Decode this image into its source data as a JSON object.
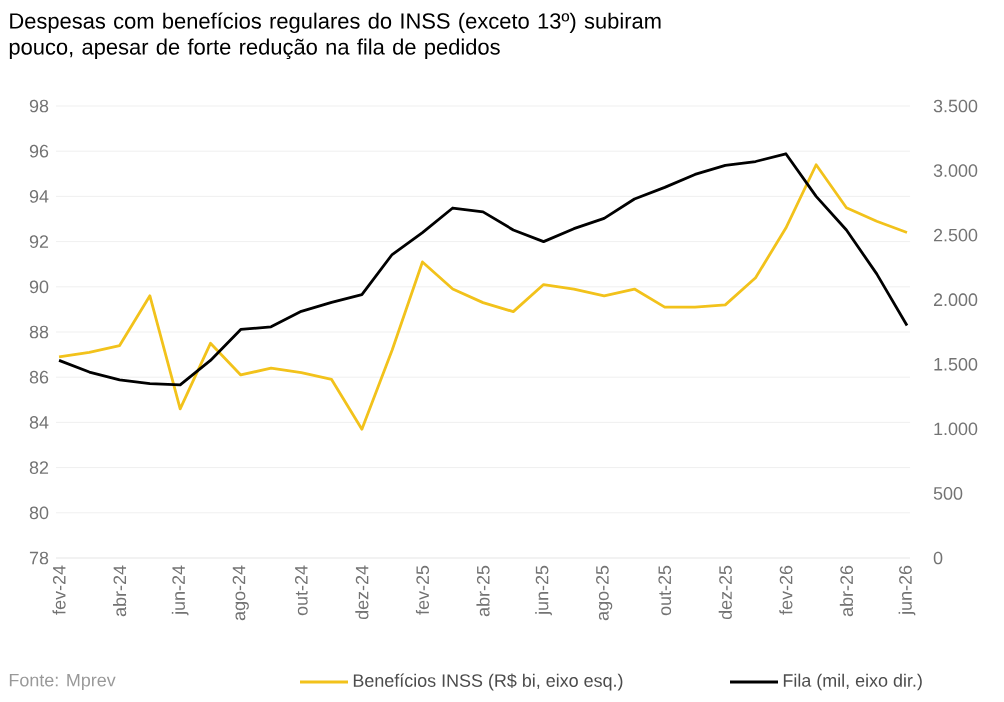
{
  "chart_data": {
    "type": "line",
    "title": "Despesas com benefícios regulares do INSS (exceto 13º) subiram pouco, apesar de forte redução na fila de pedidos",
    "categories": [
      "fev-24",
      null,
      "abr-24",
      null,
      "jun-24",
      null,
      "ago-24",
      null,
      "out-24",
      null,
      "dez-24",
      null,
      "fev-25",
      null,
      "abr-25",
      null,
      "jun-25",
      null,
      "ago-25",
      null,
      "out-25",
      null,
      "dez-25",
      null,
      "fev-26",
      null,
      "abr-26",
      null,
      "jun-26"
    ],
    "series": [
      {
        "name": "Benefícios INSS (R$ bi, eixo esq.)",
        "color": "#f2c21b",
        "values": [
          86.9,
          87.1,
          87.4,
          89.6,
          84.6,
          87.5,
          86.1,
          86.4,
          86.2,
          85.9,
          83.7,
          87.2,
          91.1,
          89.9,
          89.3,
          88.9,
          90.1,
          89.9,
          89.6,
          89.9,
          89.1,
          89.1,
          89.2,
          90.4,
          92.6,
          95.4,
          93.5,
          92.9,
          92.4
        ]
      },
      {
        "name": "Fila (mil, eixo dir.)",
        "color": "#000000",
        "axis": "y2",
        "values": [
          1530,
          1440,
          1380,
          1350,
          1340,
          1530,
          1770,
          1790,
          1910,
          1980,
          2040,
          2350,
          2520,
          2710,
          2680,
          2540,
          2450,
          2550,
          2630,
          2780,
          2870,
          2970,
          3040,
          3070,
          3130,
          2800,
          2540,
          2200,
          1800
        ]
      }
    ],
    "ylim": [
      78,
      98
    ],
    "yticks": [
      78,
      80,
      82,
      84,
      86,
      88,
      90,
      92,
      94,
      96,
      98
    ],
    "y2lim": [
      0,
      3500
    ],
    "y2ticks": [
      0,
      500,
      {
        "value": 1000,
        "label": "1.000"
      },
      {
        "value": 1500,
        "label": "1.500"
      },
      {
        "value": 2000,
        "label": "2.000"
      },
      {
        "value": 2500,
        "label": "2.500"
      },
      {
        "value": 3000,
        "label": "3.000"
      },
      {
        "value": 3500,
        "label": "3.500"
      }
    ],
    "grid": "y",
    "legend": "bottom",
    "marker": "none",
    "line_style": "solid",
    "annotations": [
      "Fonte: Mprev"
    ]
  }
}
